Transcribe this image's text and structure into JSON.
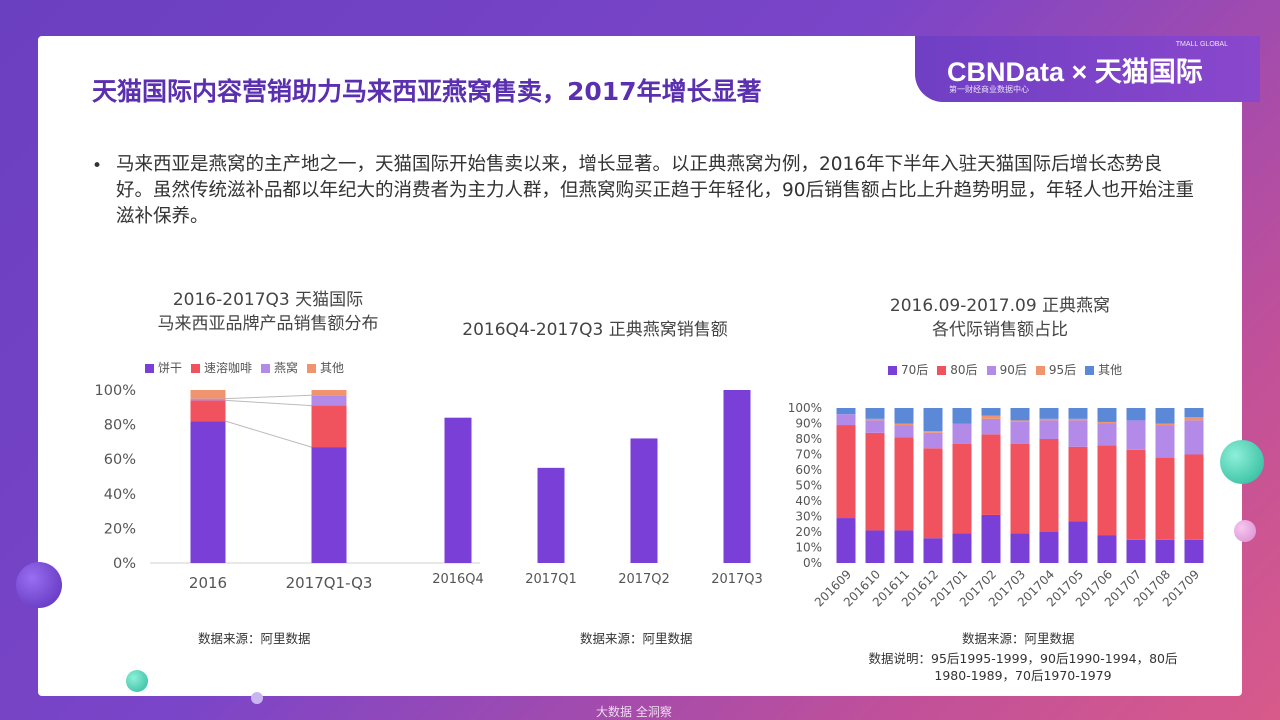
{
  "header": {
    "title": "天猫国际内容营销助力马来西亚燕窝售卖，2017年增长显著",
    "brand_main": "CBNData × 天猫国际",
    "brand_small": "TMALL GLOBAL",
    "brand_sub": "第一财经商业数据中心"
  },
  "body": {
    "bullet": "•",
    "paragraph": "马来西亚是燕窝的主产地之一，天猫国际开始售卖以来，增长显著。以正典燕窝为例，2016年下半年入驻天猫国际后增长态势良好。虽然传统滋补品都以年纪大的消费者为主力人群，但燕窝购买正趋于年轻化，90后销售额占比上升趋势明显，年轻人也开始注重滋补保养。"
  },
  "footer": {
    "watermark": "大数据  全洞察"
  },
  "colors": {
    "purple": "#7a3fd6",
    "red": "#f0525e",
    "lavender": "#b48ae8",
    "orange": "#f09470",
    "blue": "#5c88d8"
  },
  "chart_data": [
    {
      "type": "bar",
      "stacked": true,
      "title_lines": [
        "2016-2017Q3 天猫国际",
        "马来西亚品牌产品销售额分布"
      ],
      "categories": [
        "2016",
        "2017Q1-Q3"
      ],
      "series": [
        {
          "name": "饼干",
          "values": [
            82,
            67
          ]
        },
        {
          "name": "速溶咖啡",
          "values": [
            12,
            24
          ]
        },
        {
          "name": "燕窝",
          "values": [
            1,
            6
          ]
        },
        {
          "name": "其他",
          "values": [
            5,
            3
          ]
        }
      ],
      "yticks": [
        "0%",
        "20%",
        "40%",
        "60%",
        "80%",
        "100%"
      ],
      "ylim": [
        0,
        100
      ],
      "source": "数据来源：阿里数据"
    },
    {
      "type": "bar",
      "title_lines": [
        "2016Q4-2017Q3 正典燕窝销售额"
      ],
      "categories": [
        "2016Q4",
        "2017Q1",
        "2017Q2",
        "2017Q3"
      ],
      "values": [
        84,
        55,
        72,
        100
      ],
      "ylim": [
        0,
        100
      ],
      "source": "数据来源：阿里数据"
    },
    {
      "type": "bar",
      "stacked": true,
      "title_lines": [
        "2016.09-2017.09 正典燕窝",
        "各代际销售额占比"
      ],
      "categories": [
        "201609",
        "201610",
        "201611",
        "201612",
        "201701",
        "201702",
        "201703",
        "201704",
        "201705",
        "201706",
        "201707",
        "201708",
        "201709"
      ],
      "series": [
        {
          "name": "70后",
          "values": [
            29,
            21,
            21,
            16,
            19,
            31,
            19,
            20,
            27,
            18,
            15,
            15,
            15
          ]
        },
        {
          "name": "80后",
          "values": [
            60,
            63,
            60,
            58,
            58,
            52,
            58,
            60,
            48,
            58,
            58,
            53,
            55
          ]
        },
        {
          "name": "90后",
          "values": [
            7,
            8,
            8,
            10,
            13,
            10,
            14,
            12,
            17,
            14,
            19,
            21,
            22
          ]
        },
        {
          "name": "95后",
          "values": [
            0,
            1,
            1,
            1,
            0,
            2,
            1,
            1,
            1,
            1,
            0,
            1,
            2
          ]
        },
        {
          "name": "其他",
          "values": [
            4,
            7,
            10,
            15,
            10,
            5,
            8,
            7,
            7,
            9,
            8,
            10,
            6
          ]
        }
      ],
      "yticks": [
        "0%",
        "10%",
        "20%",
        "30%",
        "40%",
        "50%",
        "60%",
        "70%",
        "80%",
        "90%",
        "100%"
      ],
      "ylim": [
        0,
        100
      ],
      "source": "数据来源：阿里数据",
      "note_lines": [
        "数据说明：95后1995-1999，90后1990-1994，80后",
        "1980-1989，70后1970-1979"
      ]
    }
  ]
}
